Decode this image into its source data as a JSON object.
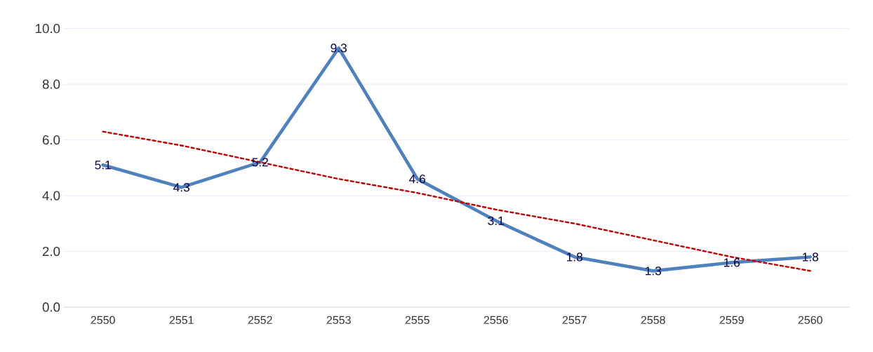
{
  "chart_data": {
    "type": "line",
    "categories": [
      "2550",
      "2551",
      "2552",
      "2553",
      "2555",
      "2556",
      "2557",
      "2558",
      "2559",
      "2560"
    ],
    "series": [
      {
        "color": "#4f81bd",
        "values": [
          5.1,
          4.3,
          5.2,
          9.3,
          4.6,
          3.1,
          1.8,
          1.3,
          1.6,
          1.8
        ],
        "value_labels": [
          "5.1",
          "4.3",
          "5.2",
          "9.3",
          "4.6",
          "3.1",
          "1.8",
          "1.3",
          "1.6",
          "1.8"
        ],
        "line_style": "solid"
      },
      {
        "color": "#c00000",
        "values": [
          6.3,
          5.8,
          5.2,
          4.6,
          4.1,
          3.5,
          3.0,
          2.4,
          1.8,
          1.3
        ],
        "line_style": "dashed"
      }
    ],
    "ylim": [
      0,
      10
    ],
    "yticks": [
      {
        "value": 0,
        "label": "0.0"
      },
      {
        "value": 2,
        "label": "2.0"
      },
      {
        "value": 4,
        "label": "4.0"
      },
      {
        "value": 6,
        "label": "6.0"
      },
      {
        "value": 8,
        "label": "8.0"
      },
      {
        "value": 10,
        "label": "10.0"
      }
    ],
    "grid": "y"
  }
}
